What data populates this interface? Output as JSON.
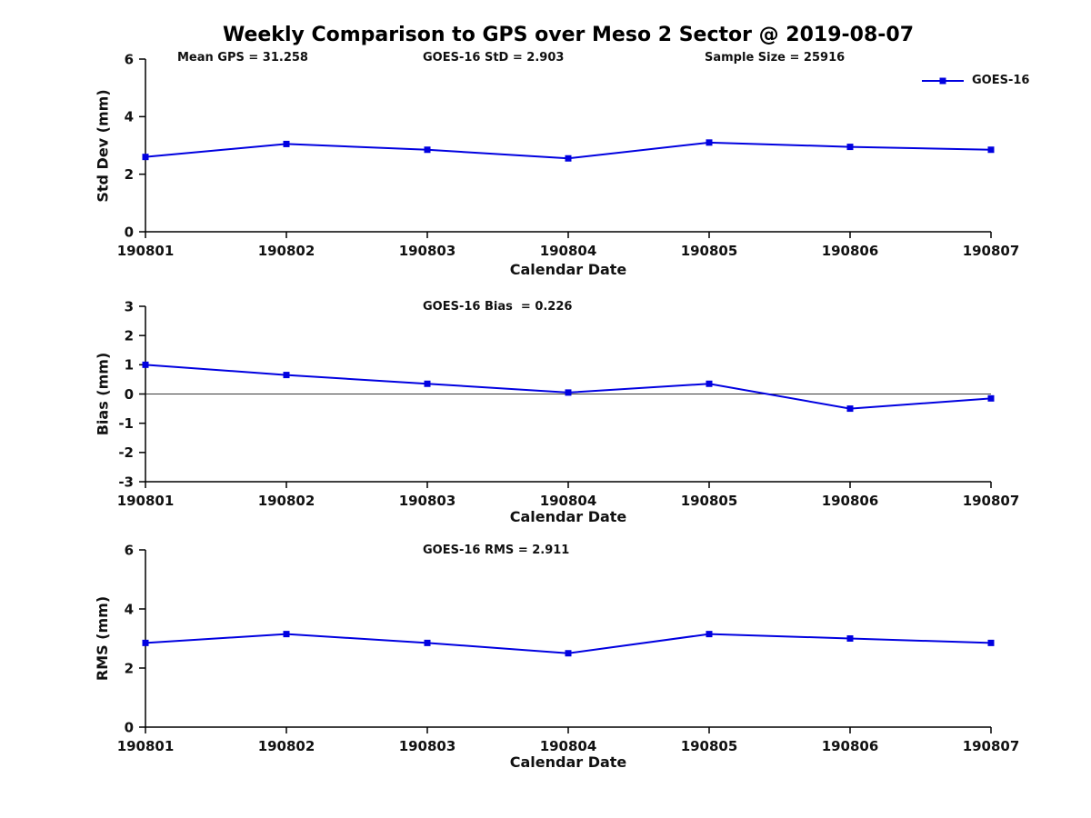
{
  "figure": {
    "title": "Weekly Comparison to GPS over Meso 2 Sector @ 2019-08-07",
    "annotations": {
      "mean_gps": "Mean GPS = 31.258",
      "goes_std": "GOES-16 StD = 2.903",
      "sample_size": "Sample Size = 25916"
    },
    "legend": {
      "label": "GOES-16",
      "color": "#0000E0"
    }
  },
  "chart_data": [
    {
      "type": "line",
      "id": "std-dev",
      "title": "",
      "xlabel": "Calendar Date",
      "ylabel": "Std Dev (mm)",
      "categories": [
        "190801",
        "190802",
        "190803",
        "190804",
        "190805",
        "190806",
        "190807"
      ],
      "series": [
        {
          "name": "GOES-16",
          "color": "#0000E0",
          "marker": "square",
          "values": [
            2.6,
            3.05,
            2.85,
            2.55,
            3.1,
            2.95,
            2.85
          ]
        }
      ],
      "ylim": [
        0,
        6
      ],
      "yticks": [
        0,
        2,
        4,
        6
      ],
      "zero_line": false,
      "grid": false,
      "legend_position": "top-right-outside"
    },
    {
      "type": "line",
      "id": "bias",
      "title": "GOES-16 Bias  = 0.226",
      "xlabel": "Calendar Date",
      "ylabel": "Bias (mm)",
      "categories": [
        "190801",
        "190802",
        "190803",
        "190804",
        "190805",
        "190806",
        "190807"
      ],
      "series": [
        {
          "name": "GOES-16",
          "color": "#0000E0",
          "marker": "square",
          "values": [
            1.0,
            0.65,
            0.35,
            0.05,
            0.35,
            -0.5,
            -0.15
          ]
        }
      ],
      "ylim": [
        -3,
        3
      ],
      "yticks": [
        -3,
        -2,
        -1,
        0,
        1,
        2,
        3
      ],
      "zero_line": true,
      "grid": false,
      "legend_position": "none"
    },
    {
      "type": "line",
      "id": "rms",
      "title": "GOES-16 RMS = 2.911",
      "xlabel": "Calendar Date",
      "ylabel": "RMS (mm)",
      "categories": [
        "190801",
        "190802",
        "190803",
        "190804",
        "190805",
        "190806",
        "190807"
      ],
      "series": [
        {
          "name": "GOES-16",
          "color": "#0000E0",
          "marker": "square",
          "values": [
            2.85,
            3.15,
            2.85,
            2.5,
            3.15,
            3.0,
            2.85
          ]
        }
      ],
      "ylim": [
        0,
        6
      ],
      "yticks": [
        0,
        2,
        4,
        6
      ],
      "zero_line": false,
      "grid": false,
      "legend_position": "none"
    }
  ]
}
